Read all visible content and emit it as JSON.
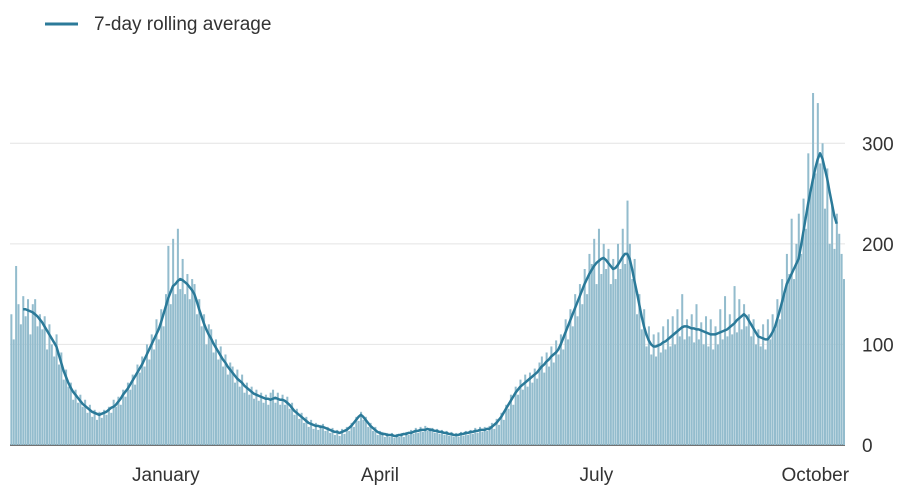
{
  "chart_data": {
    "type": "bar-line",
    "categories": [
      null,
      null,
      null,
      null,
      null,
      null,
      null,
      null,
      null,
      null,
      null,
      null,
      null,
      null,
      null,
      null,
      null,
      null,
      null,
      null,
      null,
      null,
      null,
      null,
      null,
      null,
      null,
      null,
      null,
      null,
      null,
      null,
      null,
      null,
      null,
      null,
      null,
      null,
      null,
      null,
      null,
      null,
      null,
      null,
      null,
      null,
      null,
      null,
      null,
      null,
      null,
      null,
      null,
      null,
      null,
      null,
      null,
      null,
      null,
      null,
      null,
      null,
      null,
      null,
      null,
      "January",
      null,
      null,
      null,
      null,
      null,
      null,
      null,
      null,
      null,
      null,
      null,
      null,
      null,
      null,
      null,
      null,
      null,
      null,
      null,
      null,
      null,
      null,
      null,
      null,
      null,
      null,
      null,
      null,
      null,
      null,
      null,
      null,
      null,
      null,
      null,
      null,
      null,
      null,
      null,
      null,
      null,
      null,
      null,
      null,
      null,
      null,
      null,
      null,
      null,
      null,
      null,
      null,
      null,
      null,
      null,
      null,
      null,
      null,
      null,
      null,
      null,
      null,
      null,
      null,
      null,
      null,
      null,
      null,
      null,
      null,
      null,
      null,
      null,
      null,
      null,
      null,
      null,
      null,
      null,
      null,
      null,
      null,
      null,
      null,
      null,
      null,
      null,
      null,
      null,
      "April",
      null,
      null,
      null,
      null,
      null,
      null,
      null,
      null,
      null,
      null,
      null,
      null,
      null,
      null,
      null,
      null,
      null,
      null,
      null,
      null,
      null,
      null,
      null,
      null,
      null,
      null,
      null,
      null,
      null,
      null,
      null,
      null,
      null,
      null,
      null,
      null,
      null,
      null,
      null,
      null,
      null,
      null,
      null,
      null,
      null,
      null,
      null,
      null,
      null,
      null,
      null,
      null,
      null,
      null,
      null,
      null,
      null,
      null,
      null,
      null,
      null,
      null,
      null,
      null,
      null,
      null,
      null,
      null,
      null,
      null,
      null,
      null,
      null,
      null,
      null,
      null,
      null,
      null,
      null,
      null,
      null,
      null,
      null,
      null,
      null,
      null,
      null,
      null,
      null,
      null,
      "July",
      null,
      null,
      null,
      null,
      null,
      null,
      null,
      null,
      null,
      null,
      null,
      null,
      null,
      null,
      null,
      null,
      null,
      null,
      null,
      null,
      null,
      null,
      null,
      null,
      null,
      null,
      null,
      null,
      null,
      null,
      null,
      null,
      null,
      null,
      null,
      null,
      null,
      null,
      null,
      null,
      null,
      null,
      null,
      null,
      null,
      null,
      null,
      null,
      null,
      null,
      null,
      null,
      null,
      null,
      null,
      null,
      null,
      null,
      null,
      null,
      null,
      null,
      null,
      null,
      null,
      null,
      null,
      null,
      null,
      null,
      null,
      null,
      null,
      null,
      null,
      null,
      null,
      null,
      null,
      null,
      null,
      null,
      null,
      null,
      null,
      null,
      null,
      null,
      null,
      null,
      null,
      "October",
      null,
      null,
      null,
      null,
      null,
      null,
      null,
      null,
      null,
      null,
      null,
      null
    ],
    "values": [
      130,
      105,
      178,
      140,
      120,
      148,
      128,
      145,
      110,
      140,
      145,
      118,
      130,
      115,
      128,
      95,
      120,
      100,
      88,
      110,
      80,
      92,
      65,
      75,
      58,
      62,
      45,
      55,
      42,
      50,
      38,
      45,
      32,
      40,
      28,
      35,
      25,
      33,
      27,
      35,
      30,
      38,
      32,
      45,
      38,
      48,
      40,
      55,
      48,
      62,
      55,
      70,
      60,
      80,
      72,
      88,
      78,
      100,
      85,
      110,
      95,
      125,
      105,
      135,
      118,
      150,
      198,
      140,
      205,
      150,
      215,
      155,
      185,
      150,
      170,
      145,
      165,
      160,
      130,
      145,
      118,
      130,
      100,
      120,
      115,
      92,
      105,
      85,
      98,
      78,
      90,
      70,
      82,
      78,
      62,
      75,
      58,
      70,
      52,
      62,
      50,
      58,
      46,
      55,
      44,
      52,
      42,
      50,
      40,
      52,
      55,
      42,
      52,
      40,
      50,
      40,
      48,
      36,
      42,
      30,
      36,
      26,
      32,
      22,
      28,
      18,
      25,
      16,
      22,
      15,
      20,
      21,
      14,
      18,
      12,
      17,
      10,
      15,
      9,
      16,
      11,
      18,
      14,
      22,
      18,
      28,
      24,
      33,
      25,
      28,
      18,
      22,
      14,
      18,
      10,
      14,
      13,
      8,
      12,
      8,
      12,
      7,
      11,
      8,
      12,
      8,
      13,
      10,
      15,
      11,
      17,
      12,
      18,
      13,
      19,
      14,
      17,
      17,
      12,
      16,
      11,
      15,
      10,
      14,
      9,
      13,
      8,
      12,
      8,
      13,
      9,
      14,
      10,
      15,
      11,
      17,
      12,
      18,
      13,
      18,
      14,
      19,
      22,
      16,
      26,
      20,
      32,
      25,
      40,
      36,
      50,
      40,
      58,
      50,
      65,
      55,
      70,
      58,
      72,
      62,
      76,
      66,
      82,
      88,
      72,
      92,
      78,
      98,
      82,
      104,
      90,
      110,
      95,
      125,
      105,
      135,
      118,
      150,
      128,
      160,
      140,
      175,
      150,
      190,
      180,
      205,
      160,
      215,
      170,
      200,
      175,
      195,
      160,
      185,
      165,
      200,
      175,
      215,
      180,
      243,
      200,
      165,
      185,
      130,
      150,
      115,
      135,
      98,
      118,
      90,
      110,
      88,
      112,
      92,
      118,
      95,
      125,
      98,
      128,
      100,
      135,
      108,
      150,
      105,
      125,
      108,
      130,
      102,
      140,
      105,
      122,
      100,
      128,
      98,
      125,
      95,
      118,
      100,
      135,
      105,
      148,
      108,
      130,
      110,
      158,
      112,
      145,
      115,
      140,
      118,
      130,
      108,
      125,
      100,
      115,
      98,
      120,
      95,
      125,
      105,
      130,
      115,
      145,
      125,
      165,
      150,
      190,
      170,
      225,
      165,
      200,
      230,
      190,
      245,
      215,
      290,
      255,
      350,
      270,
      340,
      280,
      300,
      235,
      275,
      200,
      240,
      195,
      230,
      210,
      190,
      165
    ],
    "color": "#93bccd",
    "series": [
      {
        "name": "7-day rolling average",
        "color": "#2b7a99",
        "values": [
          null,
          null,
          null,
          null,
          null,
          135,
          135,
          134,
          133,
          132,
          130,
          128,
          125,
          122,
          118,
          114,
          110,
          106,
          102,
          98,
          90,
          82,
          74,
          68,
          62,
          57,
          53,
          50,
          47,
          44,
          41,
          39,
          37,
          35,
          33,
          32,
          31,
          30,
          31,
          32,
          33,
          35,
          37,
          38,
          40,
          43,
          46,
          50,
          53,
          56,
          60,
          64,
          68,
          72,
          76,
          80,
          85,
          90,
          95,
          100,
          105,
          110,
          115,
          122,
          130,
          138,
          146,
          152,
          158,
          160,
          163,
          165,
          164,
          162,
          160,
          157,
          154,
          150,
          143,
          135,
          128,
          121,
          115,
          110,
          106,
          101,
          97,
          93,
          89,
          85,
          82,
          78,
          75,
          72,
          69,
          66,
          64,
          62,
          59,
          57,
          55,
          53,
          51,
          50,
          49,
          48,
          47,
          46,
          46,
          45,
          46,
          47,
          46,
          45,
          45,
          44,
          42,
          40,
          37,
          34,
          32,
          30,
          28,
          26,
          24,
          22,
          21,
          20,
          19,
          19,
          18,
          18,
          17,
          16,
          15,
          14,
          13,
          13,
          12,
          13,
          14,
          15,
          17,
          19,
          22,
          25,
          28,
          30,
          28,
          25,
          22,
          19,
          17,
          15,
          13,
          12,
          11,
          11,
          10,
          10,
          10,
          9,
          9,
          10,
          10,
          11,
          11,
          12,
          12,
          13,
          14,
          14,
          15,
          15,
          15,
          16,
          15,
          15,
          14,
          14,
          13,
          13,
          12,
          12,
          11,
          11,
          10,
          10,
          10,
          11,
          11,
          12,
          12,
          13,
          13,
          14,
          14,
          15,
          15,
          15,
          16,
          16,
          18,
          20,
          22,
          25,
          28,
          32,
          36,
          40,
          44,
          48,
          52,
          55,
          58,
          60,
          62,
          64,
          66,
          68,
          70,
          72,
          75,
          78,
          80,
          83,
          85,
          88,
          90,
          92,
          95,
          100,
          106,
          112,
          118,
          124,
          130,
          136,
          142,
          148,
          154,
          160,
          165,
          170,
          174,
          178,
          181,
          183,
          185,
          186,
          184,
          181,
          178,
          175,
          176,
          179,
          183,
          187,
          190,
          190,
          185,
          175,
          163,
          152,
          140,
          128,
          118,
          110,
          104,
          100,
          98,
          98,
          99,
          100,
          102,
          103,
          105,
          107,
          109,
          111,
          113,
          115,
          117,
          118,
          118,
          117,
          116,
          116,
          115,
          115,
          114,
          113,
          112,
          111,
          110,
          110,
          110,
          111,
          112,
          113,
          114,
          115,
          117,
          119,
          121,
          124,
          126,
          128,
          130,
          128,
          124,
          120,
          116,
          112,
          108,
          107,
          106,
          105,
          105,
          108,
          112,
          117,
          125,
          133,
          142,
          151,
          160,
          165,
          170,
          175,
          180,
          185,
          198,
          212,
          226,
          240,
          252,
          264,
          275,
          284,
          290,
          285,
          275,
          265,
          252,
          240,
          228,
          220,
          null,
          null,
          null
        ]
      }
    ],
    "ylim": [
      0,
      350
    ],
    "yticks": [
      0,
      100,
      200,
      300
    ],
    "grid": true
  }
}
